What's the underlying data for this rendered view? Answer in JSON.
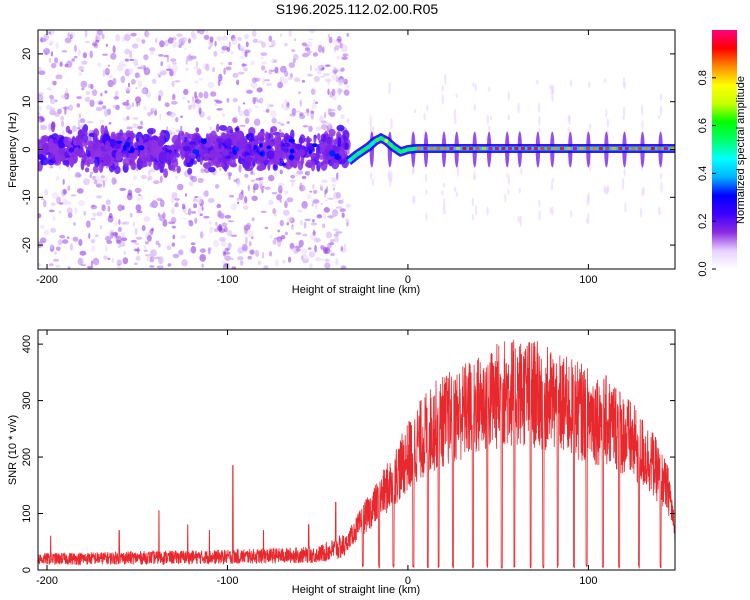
{
  "title": "S196.2025.112.02.00.R05",
  "chart_data": [
    {
      "type": "heatmap",
      "xlabel": "Height of straight line (km)",
      "ylabel": "Frequency (Hz)",
      "xlim": [
        -205,
        148
      ],
      "ylim": [
        -25,
        25
      ],
      "xticks": [
        -200,
        -100,
        0,
        100
      ],
      "yticks": [
        -20,
        -10,
        0,
        10,
        20
      ],
      "colorbar": {
        "label": "Normalized spectral amplitude",
        "range": [
          0,
          1
        ],
        "ticks": [
          0.0,
          0.2,
          0.4,
          0.6,
          0.8
        ],
        "colormap": [
          "#ffffff",
          "#e7d0ff",
          "#8a2be2",
          "#3c00ff",
          "#0000ff",
          "#00b4ff",
          "#00ffff",
          "#00ff6a",
          "#00ff00",
          "#c8ff00",
          "#ffff00",
          "#ff8c00",
          "#ff0000",
          "#ff0080"
        ]
      },
      "track": {
        "description": "frequency ridge vs height",
        "points": [
          [
            -33,
            -2.5
          ],
          [
            -28,
            -1
          ],
          [
            -22,
            0.5
          ],
          [
            -18,
            1.8
          ],
          [
            -15,
            2.4
          ],
          [
            -12,
            1.8
          ],
          [
            -8,
            0.5
          ],
          [
            -4,
            -0.5
          ],
          [
            0,
            0
          ],
          [
            5,
            0.2
          ],
          [
            20,
            0.2
          ],
          [
            60,
            0.2
          ],
          [
            100,
            0.2
          ],
          [
            148,
            0.2
          ]
        ]
      }
    },
    {
      "type": "line",
      "xlabel": "Height of straight line (km)",
      "ylabel": "SNR (10 * v/v)",
      "xlim": [
        -205,
        148
      ],
      "ylim": [
        0,
        425
      ],
      "xticks": [
        -200,
        -100,
        0,
        100
      ],
      "yticks": [
        0,
        100,
        200,
        300,
        400
      ],
      "color": "#e8282d",
      "envelope": [
        [
          -205,
          25
        ],
        [
          -150,
          28
        ],
        [
          -100,
          30
        ],
        [
          -50,
          35
        ],
        [
          -35,
          55
        ],
        [
          -25,
          110
        ],
        [
          -15,
          160
        ],
        [
          -5,
          220
        ],
        [
          5,
          280
        ],
        [
          15,
          320
        ],
        [
          30,
          350
        ],
        [
          45,
          375
        ],
        [
          55,
          395
        ],
        [
          70,
          390
        ],
        [
          85,
          365
        ],
        [
          100,
          345
        ],
        [
          115,
          320
        ],
        [
          125,
          280
        ],
        [
          135,
          240
        ],
        [
          145,
          170
        ],
        [
          148,
          80
        ]
      ],
      "spikes": [
        [
          -198,
          60
        ],
        [
          -160,
          70
        ],
        [
          -138,
          105
        ],
        [
          -122,
          80
        ],
        [
          -110,
          70
        ],
        [
          -97,
          185
        ],
        [
          -80,
          70
        ],
        [
          -55,
          80
        ],
        [
          -40,
          120
        ]
      ],
      "dropouts": [
        -25,
        -16,
        -8,
        3,
        11,
        17,
        25,
        36,
        44,
        52,
        59,
        68,
        75,
        83,
        92,
        99,
        108,
        117,
        128,
        140
      ]
    }
  ]
}
